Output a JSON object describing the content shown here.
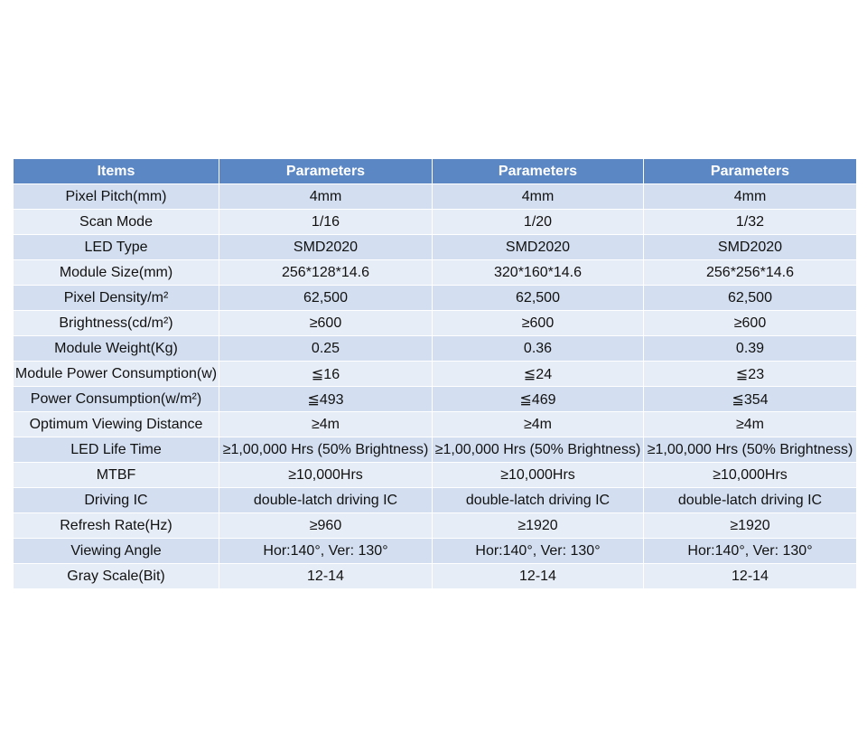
{
  "table": {
    "header": [
      "Items",
      "Parameters",
      "Parameters",
      "Parameters"
    ],
    "rows": [
      [
        "Pixel Pitch(mm)",
        "4mm",
        "4mm",
        "4mm"
      ],
      [
        "Scan Mode",
        "1/16",
        "1/20",
        "1/32"
      ],
      [
        "LED Type",
        "SMD2020",
        "SMD2020",
        "SMD2020"
      ],
      [
        "Module Size(mm)",
        "256*128*14.6",
        "320*160*14.6",
        "256*256*14.6"
      ],
      [
        "Pixel Density/m²",
        "62,500",
        "62,500",
        "62,500"
      ],
      [
        "Brightness(cd/m²)",
        "≥600",
        "≥600",
        "≥600"
      ],
      [
        "Module Weight(Kg)",
        "0.25",
        "0.36",
        "0.39"
      ],
      [
        "Module Power Consumption(w)",
        "≦16",
        "≦24",
        "≦23"
      ],
      [
        "Power Consumption(w/m²)",
        "≦493",
        "≦469",
        "≦354"
      ],
      [
        "Optimum Viewing Distance",
        "≥4m",
        "≥4m",
        "≥4m"
      ],
      [
        "LED Life Time",
        "≥1,00,000 Hrs (50% Brightness)",
        "≥1,00,000 Hrs (50% Brightness)",
        "≥1,00,000 Hrs (50% Brightness)"
      ],
      [
        "MTBF",
        "≥10,000Hrs",
        "≥10,000Hrs",
        "≥10,000Hrs"
      ],
      [
        "Driving IC",
        "double-latch driving IC",
        "double-latch driving IC",
        "double-latch driving IC"
      ],
      [
        "Refresh Rate(Hz)",
        "≥960",
        "≥1920",
        "≥1920"
      ],
      [
        "Viewing Angle",
        "Hor:140°, Ver: 130°",
        "Hor:140°, Ver: 130°",
        "Hor:140°, Ver: 130°"
      ],
      [
        "Gray Scale(Bit)",
        "12-14",
        "12-14",
        "12-14"
      ]
    ]
  }
}
